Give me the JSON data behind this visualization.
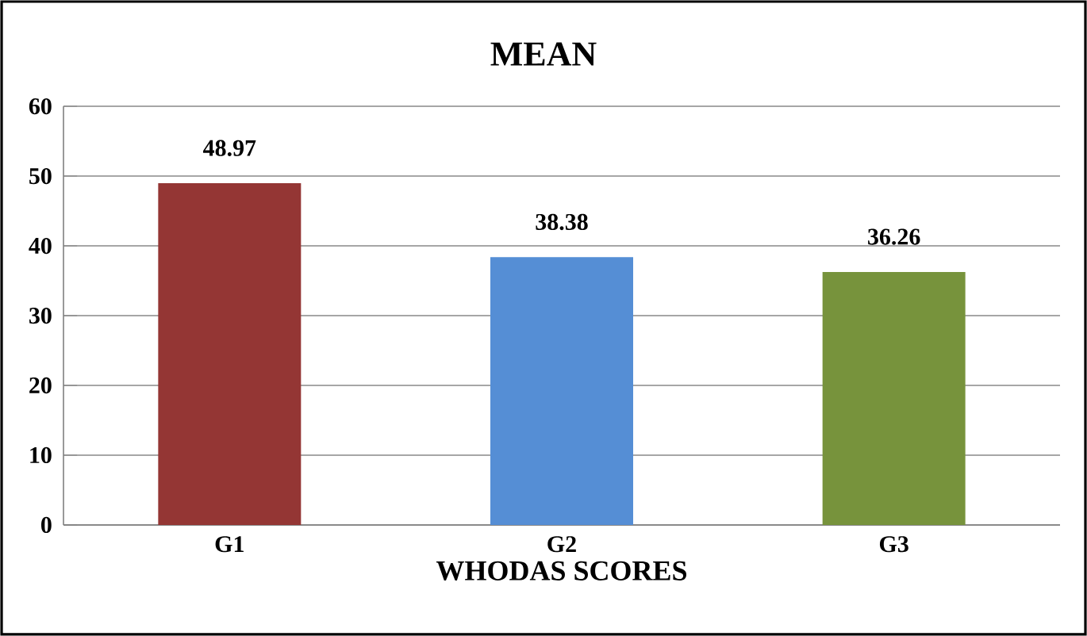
{
  "chart_data": {
    "type": "bar",
    "title": "MEAN",
    "xlabel": "WHODAS SCORES",
    "categories": [
      "G1",
      "G2",
      "G3"
    ],
    "values": [
      48.97,
      38.38,
      36.26
    ],
    "colors": [
      "#943634",
      "#558ed5",
      "#77933c"
    ],
    "ylim": [
      0,
      60
    ],
    "yticks": [
      0,
      10,
      20,
      30,
      40,
      50,
      60
    ],
    "grid": "y",
    "data_labels": true
  }
}
